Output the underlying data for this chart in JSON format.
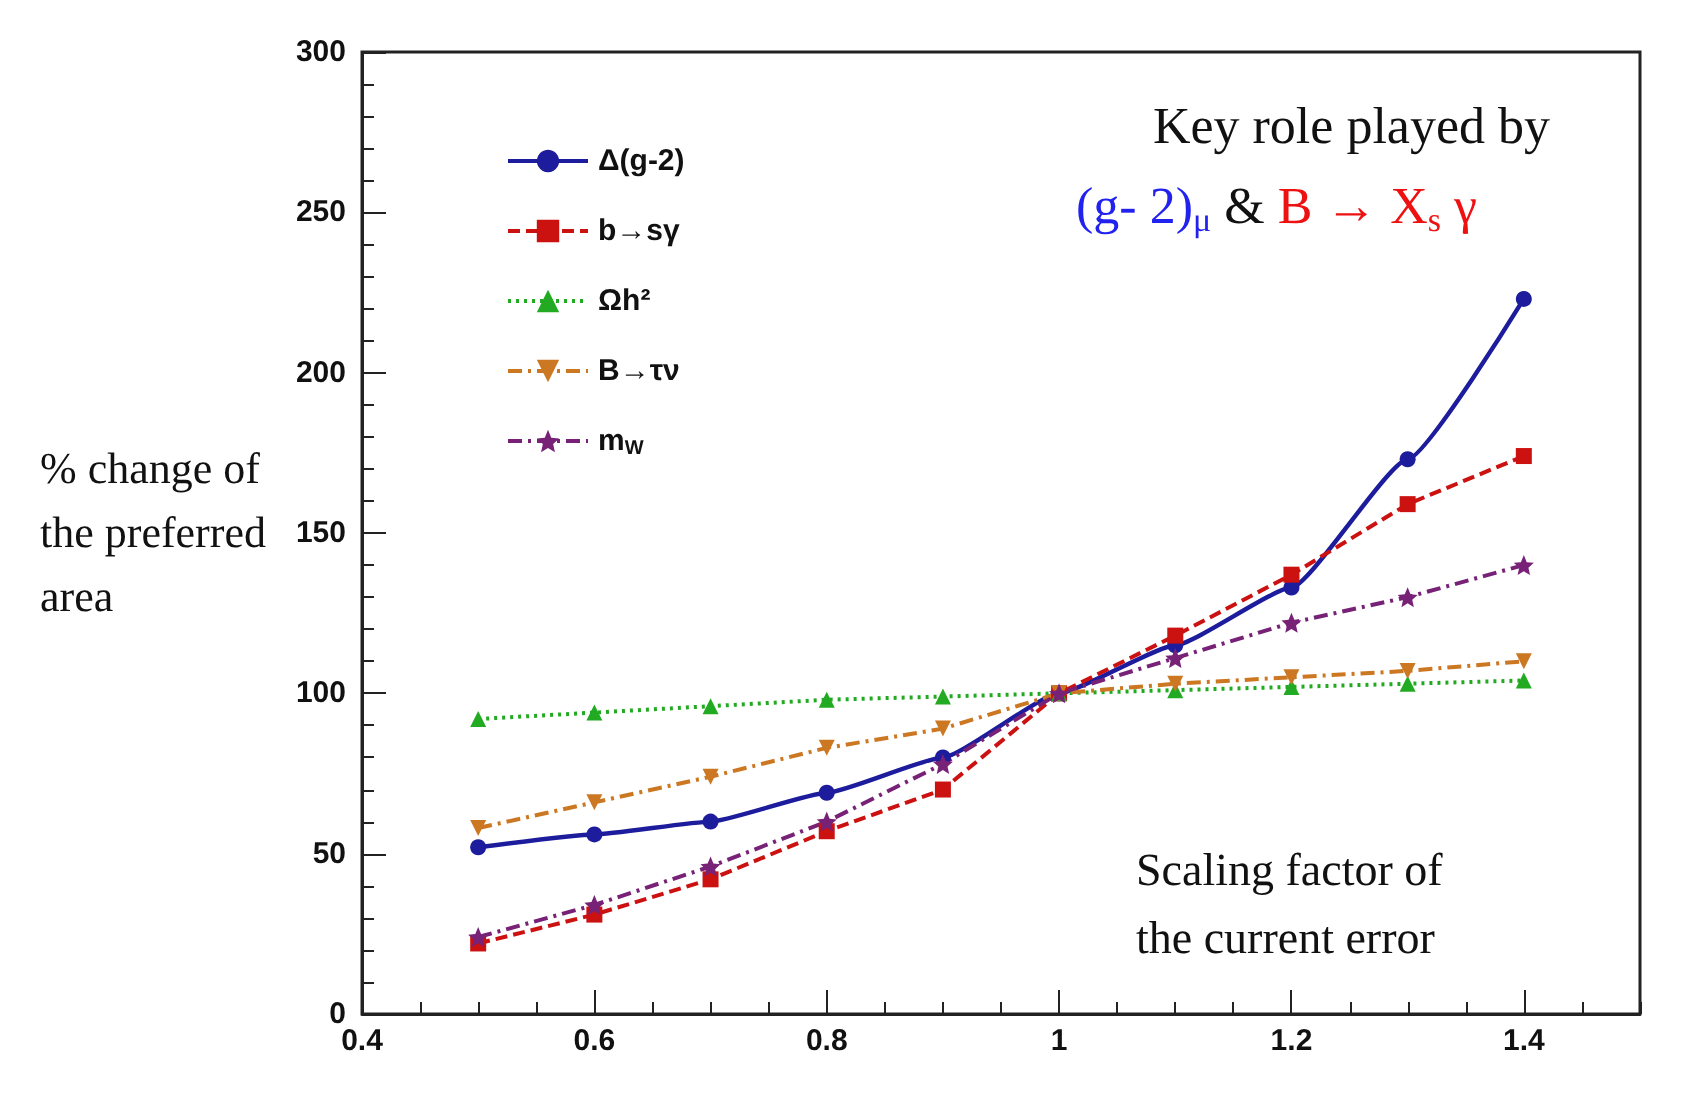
{
  "chart_data": {
    "type": "line",
    "xlabel": "Scaling factor of the current error",
    "ylabel": "% change of the preferred area",
    "annotations": [
      "Key role played by",
      "(g- 2)$_{μ}$",
      "&",
      "B → X$_{s}$ γ"
    ],
    "x": [
      0.5,
      0.6,
      0.7,
      0.8,
      0.9,
      1.0,
      1.1,
      1.2,
      1.3,
      1.4
    ],
    "series": [
      {
        "name": "Δ(g-2)",
        "color": "#1c1c9c",
        "marker": "circle",
        "line_style": "solid",
        "values": [
          52,
          56,
          60,
          69,
          80,
          100,
          115,
          133,
          173,
          223
        ]
      },
      {
        "name": "b→sγ",
        "color": "#cc1111",
        "marker": "square",
        "line_style": "dashed",
        "values": [
          22,
          31,
          42,
          57,
          70,
          100,
          118,
          137,
          159,
          174
        ]
      },
      {
        "name": "Ωh²",
        "color": "#22aa22",
        "marker": "triangle",
        "line_style": "dotted",
        "values": [
          92,
          94,
          96,
          98,
          99,
          100,
          101,
          102,
          103,
          104
        ]
      },
      {
        "name": "B→τν",
        "color": "#cc7722",
        "marker": "triangle-down",
        "line_style": "dashdot",
        "values": [
          58,
          66,
          74,
          83,
          89,
          100,
          103,
          105,
          107,
          110
        ]
      },
      {
        "name": "m$_{W}$",
        "color": "#772277",
        "marker": "star",
        "line_style": "dashdot",
        "values": [
          24,
          34,
          46,
          60,
          78,
          100,
          111,
          122,
          130,
          140
        ]
      }
    ],
    "xlim": [
      0.4,
      1.5
    ],
    "xticks": [
      0.4,
      0.6,
      0.8,
      1,
      1.2,
      1.4
    ],
    "ylim": [
      0,
      300
    ],
    "yticks": [
      0,
      50,
      100,
      150,
      200,
      250,
      300
    ],
    "grid": false,
    "legend": "top left"
  }
}
